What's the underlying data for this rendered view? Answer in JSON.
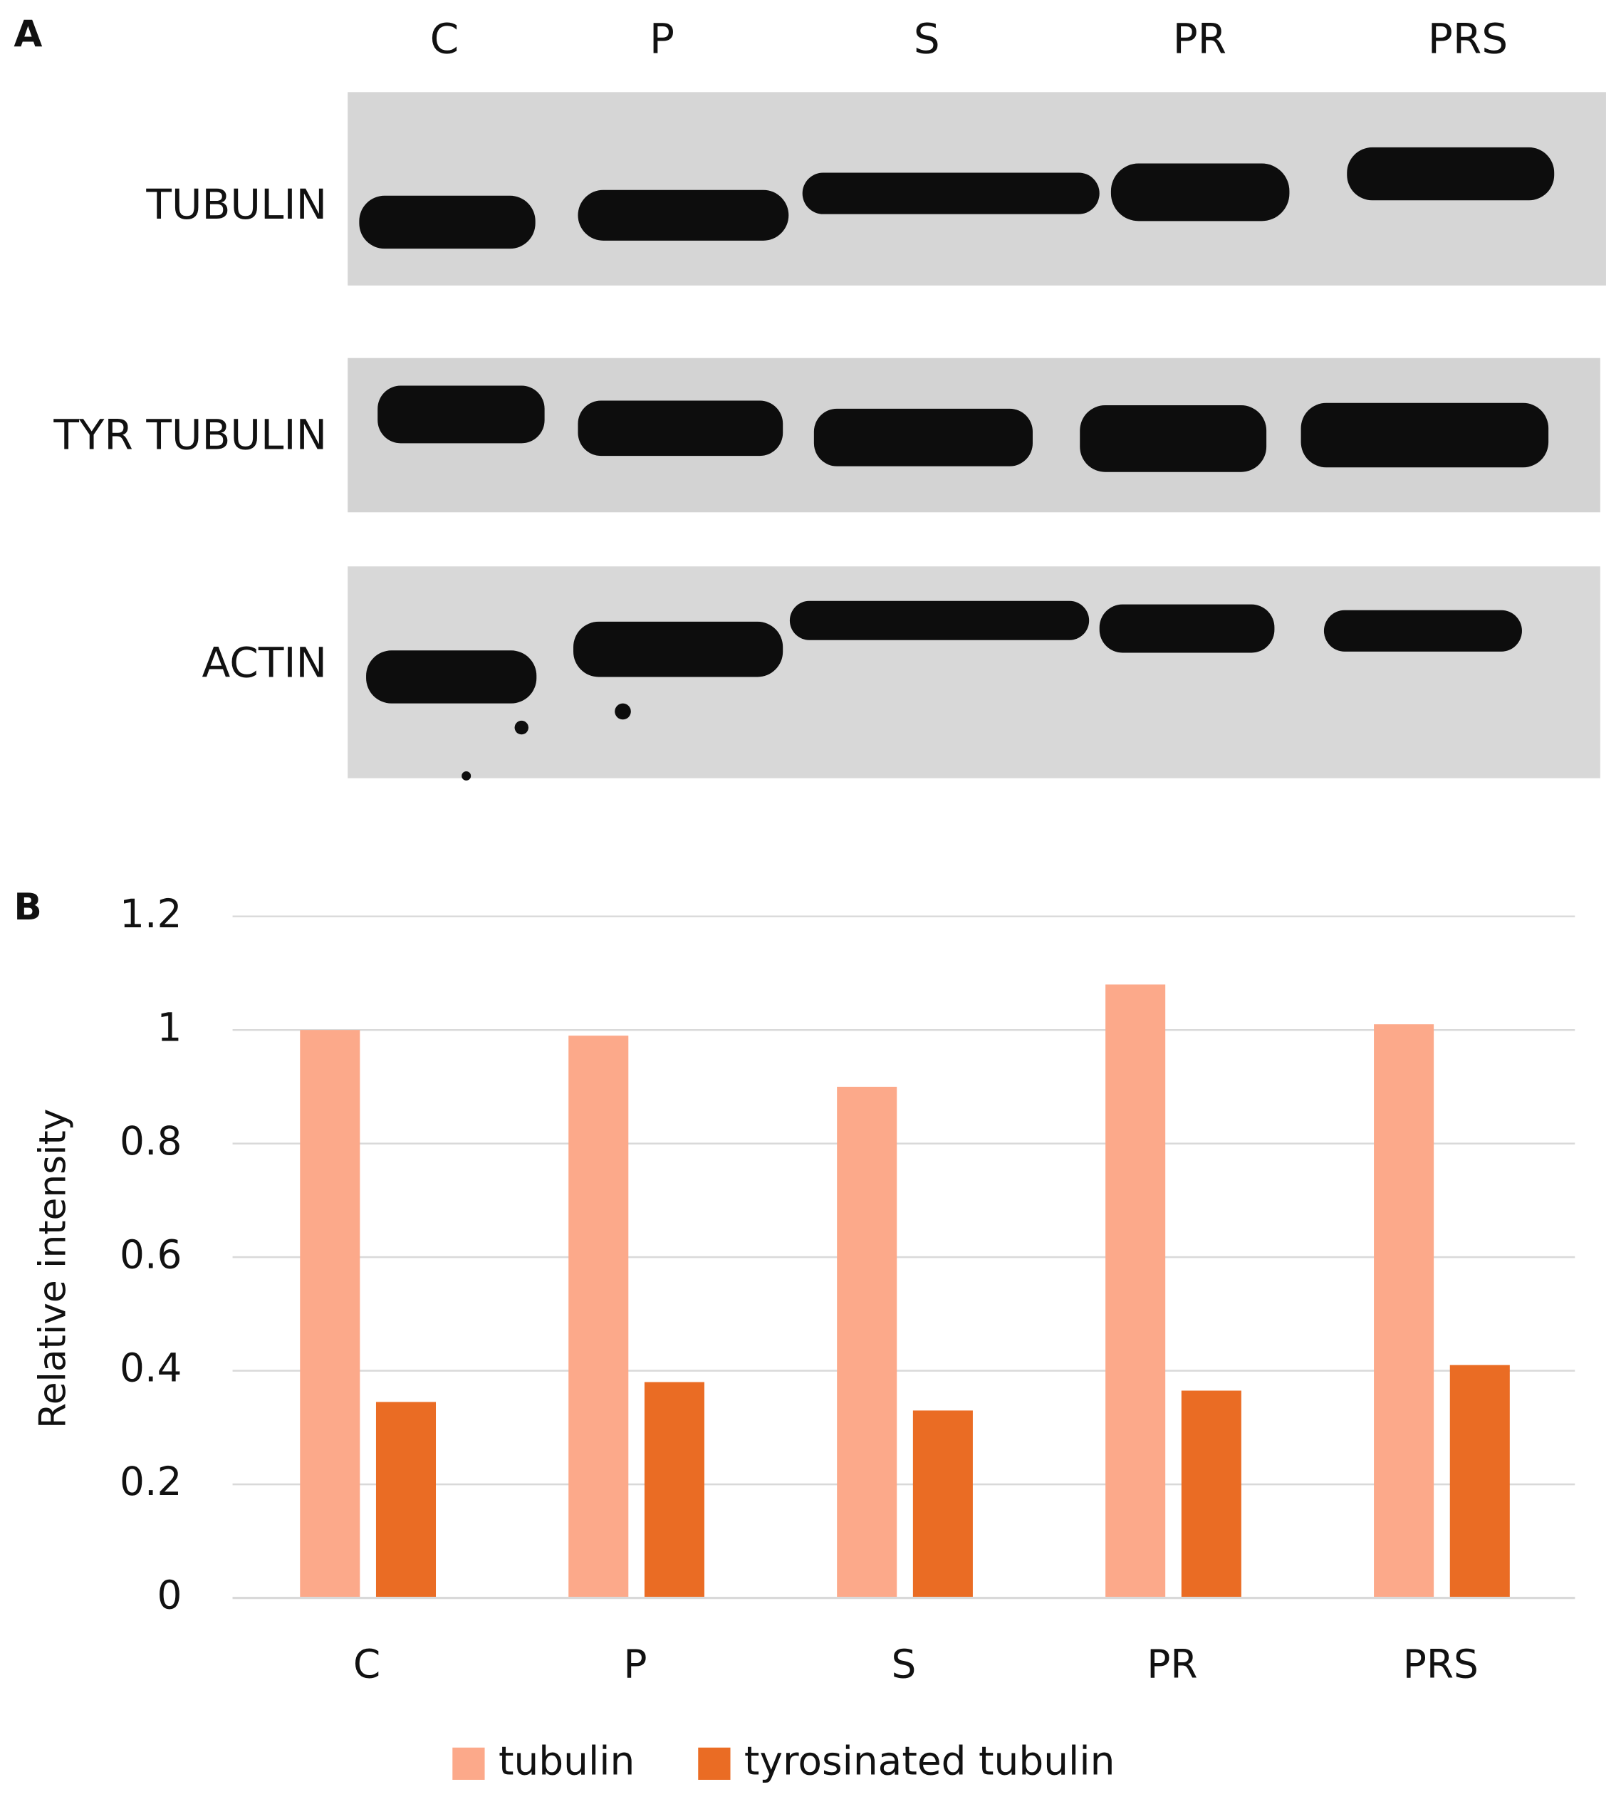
{
  "panels": {
    "a": "A",
    "b": "B"
  },
  "blot": {
    "lanes": [
      "C",
      "P",
      "S",
      "PR",
      "PRS"
    ],
    "rows": [
      "TUBULIN",
      "TYR TUBULIN",
      "ACTIN"
    ]
  },
  "chart_data": {
    "type": "bar",
    "y_label": "Relative intensity",
    "categories": [
      "C",
      "P",
      "S",
      "PR",
      "PRS"
    ],
    "series": [
      {
        "name": "tubulin",
        "color": "#fca98a",
        "values": [
          1.0,
          0.99,
          0.9,
          1.08,
          1.01
        ]
      },
      {
        "name": "tyrosinated tubulin",
        "color": "#ea6c24",
        "values": [
          0.345,
          0.38,
          0.33,
          0.365,
          0.41
        ]
      }
    ],
    "ylim": [
      0,
      1.2
    ],
    "yticks": [
      0,
      0.2,
      0.4,
      0.6,
      0.8,
      1,
      1.2
    ],
    "grid": true,
    "legend": "bottom"
  }
}
